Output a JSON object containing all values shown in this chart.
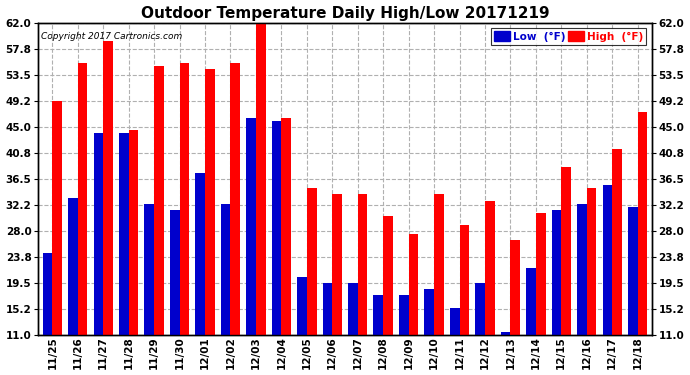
{
  "title": "Outdoor Temperature Daily High/Low 20171219",
  "copyright": "Copyright 2017 Cartronics.com",
  "categories": [
    "11/25",
    "11/26",
    "11/27",
    "11/28",
    "11/29",
    "11/30",
    "12/01",
    "12/02",
    "12/03",
    "12/04",
    "12/05",
    "12/06",
    "12/07",
    "12/08",
    "12/09",
    "12/10",
    "12/11",
    "12/12",
    "12/13",
    "12/14",
    "12/15",
    "12/16",
    "12/17",
    "12/18"
  ],
  "high": [
    49.2,
    55.5,
    59.0,
    44.5,
    55.0,
    55.5,
    54.5,
    55.5,
    62.0,
    46.5,
    35.0,
    34.0,
    34.0,
    30.5,
    27.5,
    34.0,
    29.0,
    33.0,
    26.5,
    31.0,
    38.5,
    35.0,
    41.5,
    47.5
  ],
  "low": [
    24.5,
    33.5,
    44.0,
    44.0,
    32.5,
    31.5,
    37.5,
    32.5,
    46.5,
    46.0,
    20.5,
    19.5,
    19.5,
    17.5,
    17.5,
    18.5,
    15.5,
    19.5,
    11.5,
    22.0,
    31.5,
    32.5,
    35.5,
    32.0
  ],
  "high_color": "#ff0000",
  "low_color": "#0000cc",
  "background_color": "#ffffff",
  "plot_bg_color": "#ffffff",
  "grid_color": "#b0b0b0",
  "title_fontsize": 11,
  "yticks": [
    11.0,
    15.2,
    19.5,
    23.8,
    28.0,
    32.2,
    36.5,
    40.8,
    45.0,
    49.2,
    53.5,
    57.8,
    62.0
  ],
  "ymin": 11.0,
  "ymax": 62.0,
  "legend_low_label": "Low  (°F)",
  "legend_high_label": "High  (°F)"
}
